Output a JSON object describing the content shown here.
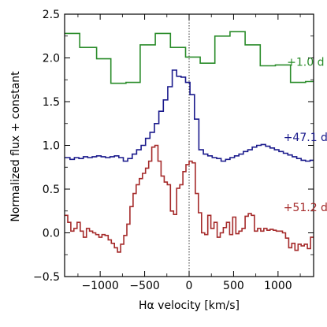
{
  "chart_data": {
    "type": "line",
    "drawstyle": "steps",
    "xlabel": "Hα velocity [km/s]",
    "ylabel": "Normalized flux + constant",
    "xlim": [
      -1400,
      1400
    ],
    "ylim": [
      -0.5,
      2.5
    ],
    "xticks": [
      -1000,
      -500,
      0,
      500,
      1000
    ],
    "xtick_labels": [
      "−1000",
      "−500",
      "0",
      "500",
      "1000"
    ],
    "yticks": [
      -0.5,
      0.0,
      0.5,
      1.0,
      1.5,
      2.0,
      2.5
    ],
    "ytick_labels": [
      "−0.5",
      "0.0",
      "0.5",
      "1.0",
      "1.5",
      "2.0",
      "2.5"
    ],
    "minor_xticks": [
      -1250,
      -750,
      -250,
      250,
      750,
      1250
    ],
    "minor_yticks": [
      -0.25,
      0.25,
      0.75,
      1.25,
      1.75,
      2.25
    ],
    "reference_line": {
      "x": 0,
      "style": "dotted",
      "color": "#000000"
    },
    "grid": false,
    "series": [
      {
        "name": "+1.0 d",
        "color": "#2a8c2a",
        "x": [
          -1400,
          -1230,
          -1040,
          -880,
          -710,
          -550,
          -380,
          -210,
          -40,
          125,
          290,
          460,
          630,
          800,
          970,
          1140,
          1310,
          1400
        ],
        "y": [
          2.28,
          2.12,
          1.99,
          1.71,
          1.72,
          2.15,
          2.28,
          2.12,
          2.01,
          1.94,
          2.25,
          2.3,
          2.15,
          1.91,
          1.92,
          1.72,
          1.73,
          1.73
        ]
      },
      {
        "name": "+47.1 d",
        "color": "#1a1a8c",
        "x": [
          -1400,
          -1340,
          -1290,
          -1240,
          -1190,
          -1140,
          -1090,
          -1040,
          -990,
          -940,
          -890,
          -840,
          -790,
          -740,
          -690,
          -640,
          -590,
          -540,
          -490,
          -440,
          -390,
          -340,
          -290,
          -240,
          -190,
          -140,
          -90,
          -40,
          10,
          60,
          110,
          160,
          210,
          260,
          310,
          360,
          410,
          460,
          510,
          560,
          610,
          660,
          710,
          760,
          810,
          860,
          910,
          960,
          1010,
          1060,
          1110,
          1160,
          1210,
          1260,
          1310,
          1360,
          1400
        ],
        "y": [
          0.86,
          0.84,
          0.86,
          0.85,
          0.87,
          0.86,
          0.87,
          0.88,
          0.87,
          0.86,
          0.87,
          0.88,
          0.86,
          0.82,
          0.85,
          0.9,
          0.95,
          1.0,
          1.08,
          1.15,
          1.25,
          1.39,
          1.52,
          1.67,
          1.86,
          1.79,
          1.78,
          1.72,
          1.58,
          1.3,
          0.95,
          0.9,
          0.88,
          0.86,
          0.85,
          0.82,
          0.84,
          0.86,
          0.88,
          0.9,
          0.93,
          0.95,
          0.98,
          1.0,
          1.01,
          0.99,
          0.97,
          0.95,
          0.93,
          0.91,
          0.89,
          0.87,
          0.85,
          0.83,
          0.82,
          0.83,
          0.83
        ]
      },
      {
        "name": "+51.2 d",
        "color": "#a52a2a",
        "x": [
          -1400,
          -1365,
          -1330,
          -1295,
          -1260,
          -1225,
          -1190,
          -1155,
          -1120,
          -1085,
          -1050,
          -1015,
          -980,
          -945,
          -910,
          -875,
          -840,
          -805,
          -770,
          -735,
          -700,
          -665,
          -630,
          -595,
          -560,
          -525,
          -490,
          -455,
          -420,
          -385,
          -350,
          -315,
          -280,
          -245,
          -210,
          -175,
          -140,
          -105,
          -70,
          -35,
          0,
          35,
          70,
          105,
          140,
          175,
          210,
          245,
          280,
          315,
          350,
          385,
          420,
          455,
          490,
          525,
          560,
          595,
          630,
          665,
          700,
          735,
          770,
          805,
          840,
          875,
          910,
          945,
          980,
          1015,
          1050,
          1085,
          1120,
          1155,
          1190,
          1225,
          1260,
          1295,
          1330,
          1365,
          1400
        ],
        "y": [
          0.2,
          0.12,
          0.02,
          0.05,
          0.12,
          0.02,
          -0.05,
          0.05,
          0.02,
          0.0,
          -0.02,
          -0.05,
          -0.02,
          -0.03,
          -0.08,
          -0.12,
          -0.17,
          -0.22,
          -0.13,
          -0.03,
          0.1,
          0.3,
          0.45,
          0.55,
          0.62,
          0.68,
          0.74,
          0.82,
          0.98,
          1.0,
          0.82,
          0.65,
          0.58,
          0.55,
          0.25,
          0.21,
          0.51,
          0.55,
          0.7,
          0.78,
          0.82,
          0.8,
          0.45,
          0.23,
          0.0,
          -0.02,
          0.2,
          0.05,
          0.12,
          -0.05,
          0.0,
          0.06,
          0.12,
          -0.02,
          0.18,
          -0.01,
          0.02,
          0.05,
          0.19,
          0.22,
          0.2,
          0.02,
          0.05,
          0.02,
          0.05,
          0.03,
          0.04,
          0.03,
          0.02,
          0.02,
          0.0,
          -0.06,
          -0.17,
          -0.12,
          -0.2,
          -0.13,
          -0.15,
          -0.13,
          -0.18,
          -0.05,
          -0.05
        ]
      }
    ],
    "series_labels": [
      {
        "text": "+1.0 d",
        "x": 1310,
        "y": 1.91
      },
      {
        "text": "+47.1 d",
        "x": 1310,
        "y": 1.05
      },
      {
        "text": "+51.2 d",
        "x": 1310,
        "y": 0.25
      }
    ]
  }
}
